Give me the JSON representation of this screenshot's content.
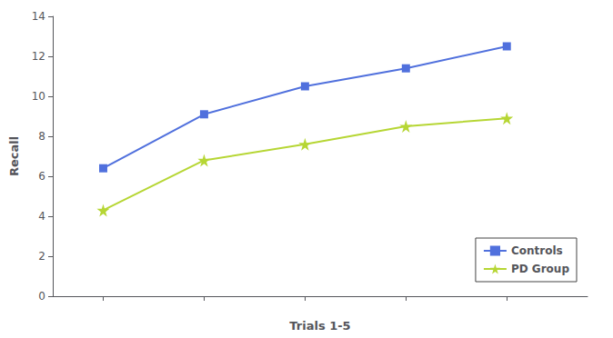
{
  "chart_data": {
    "type": "line",
    "x": [
      1,
      2,
      3,
      4,
      5
    ],
    "series": [
      {
        "name": "Controls",
        "values": [
          6.4,
          9.1,
          10.5,
          11.4,
          12.5
        ],
        "marker": "square",
        "line_style": "solid"
      },
      {
        "name": "PD Group",
        "values": [
          4.3,
          6.8,
          7.6,
          8.5,
          8.9
        ],
        "marker": "star",
        "line_style": "solid"
      }
    ],
    "x_label": "Trials 1-5",
    "y_label": "Recall",
    "xlim": [
      0.5,
      5.8
    ],
    "xticks": [
      1,
      2,
      3,
      4,
      5
    ],
    "ylim": [
      0,
      14
    ],
    "yticks": [
      0,
      2,
      4,
      6,
      8,
      10,
      12,
      14
    ],
    "tick_labels": "y",
    "grid": false,
    "legend": "lower right"
  }
}
